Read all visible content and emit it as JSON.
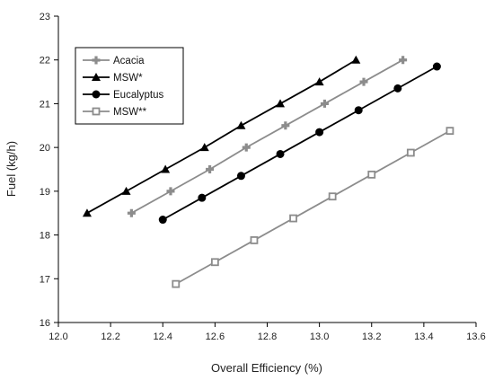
{
  "chart_data": {
    "type": "line",
    "title": "",
    "xlabel": "Overall Efficiency (%)",
    "ylabel": "Fuel (kg/h)",
    "xlim": [
      12.0,
      13.6
    ],
    "ylim": [
      16,
      23
    ],
    "x_ticks": [
      "12.0",
      "12.2",
      "12.4",
      "12.6",
      "12.8",
      "13.0",
      "13.2",
      "13.4",
      "13.6"
    ],
    "y_ticks": [
      "16",
      "17",
      "18",
      "19",
      "20",
      "21",
      "22",
      "23"
    ],
    "legend_position": "top-left",
    "grid": false,
    "series": [
      {
        "name": "Acacia",
        "color": "#8c8c8c",
        "marker": "cross",
        "x": [
          12.28,
          12.43,
          12.58,
          12.72,
          12.87,
          13.02,
          13.17,
          13.32
        ],
        "y": [
          18.5,
          19.0,
          19.5,
          20.0,
          20.5,
          21.0,
          21.5,
          22.0
        ]
      },
      {
        "name": "MSW*",
        "color": "#000000",
        "marker": "triangle",
        "x": [
          12.11,
          12.26,
          12.41,
          12.56,
          12.7,
          12.85,
          13.0,
          13.14
        ],
        "y": [
          18.5,
          19.0,
          19.5,
          20.0,
          20.5,
          21.0,
          21.5,
          22.0
        ]
      },
      {
        "name": "Eucalyptus",
        "color": "#000000",
        "marker": "circle",
        "x": [
          12.4,
          12.55,
          12.7,
          12.85,
          13.0,
          13.15,
          13.3,
          13.45
        ],
        "y": [
          18.35,
          18.85,
          19.35,
          19.85,
          20.35,
          20.85,
          21.35,
          21.85
        ]
      },
      {
        "name": "MSW**",
        "color": "#8c8c8c",
        "marker": "square-open",
        "x": [
          12.45,
          12.6,
          12.75,
          12.9,
          13.05,
          13.2,
          13.35,
          13.5
        ],
        "y": [
          16.88,
          17.38,
          17.88,
          18.38,
          18.88,
          19.38,
          19.88,
          20.38
        ]
      }
    ]
  }
}
